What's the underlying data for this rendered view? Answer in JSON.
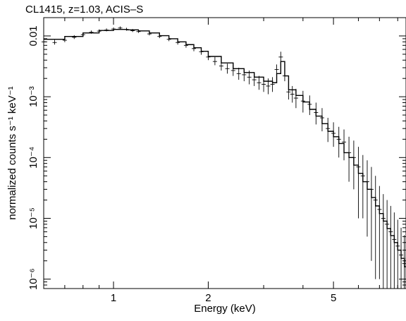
{
  "chart_data": {
    "type": "scatter",
    "title": "CL1415, z=1.03, ACIS–S",
    "xlabel": "Energy (keV)",
    "ylabel": "normalized counts s⁻¹ keV⁻¹",
    "xscale": "log",
    "yscale": "log",
    "xlim": [
      0.6,
      8.5
    ],
    "ylim": [
      7e-07,
      0.02
    ],
    "grid": false,
    "x_ticks": [
      {
        "value": 1,
        "label": "1"
      },
      {
        "value": 2,
        "label": "2"
      },
      {
        "value": 5,
        "label": "5"
      }
    ],
    "y_ticks": [
      {
        "value": 0.01,
        "label": "0.01"
      },
      {
        "value": 0.001,
        "label": "10⁻³"
      },
      {
        "value": 0.0001,
        "label": "10⁻⁴"
      },
      {
        "value": 1e-05,
        "label": "10⁻⁵"
      },
      {
        "value": 1e-06,
        "label": "10⁻⁶"
      }
    ],
    "series": [
      {
        "style": "crosses-with-error-bars",
        "color": "#000000",
        "x": [
          0.6,
          0.65,
          0.7,
          0.75,
          0.8,
          0.85,
          0.9,
          0.95,
          1.0,
          1.05,
          1.1,
          1.15,
          1.2,
          1.3,
          1.4,
          1.5,
          1.6,
          1.7,
          1.8,
          1.9,
          2.0,
          2.1,
          2.2,
          2.3,
          2.4,
          2.5,
          2.6,
          2.7,
          2.8,
          2.9,
          3.0,
          3.1,
          3.2,
          3.3,
          3.4,
          3.5,
          3.6,
          3.7,
          3.8,
          4.0,
          4.2,
          4.4,
          4.6,
          4.8,
          5.0,
          5.2,
          5.4,
          5.6,
          5.8,
          6.0,
          6.2,
          6.4,
          6.6,
          6.8,
          7.0,
          7.2,
          7.4,
          7.6,
          7.8,
          8.0,
          8.2,
          8.4
        ],
        "y": [
          0.008,
          0.0078,
          0.0085,
          0.0095,
          0.0105,
          0.0115,
          0.012,
          0.0125,
          0.013,
          0.0135,
          0.0128,
          0.0122,
          0.0118,
          0.0108,
          0.0098,
          0.0088,
          0.0078,
          0.007,
          0.0062,
          0.0055,
          0.0045,
          0.0038,
          0.0032,
          0.0029,
          0.0027,
          0.0024,
          0.0023,
          0.0021,
          0.0019,
          0.0017,
          0.0016,
          0.0015,
          0.0016,
          0.0028,
          0.0045,
          0.0022,
          0.0012,
          0.0011,
          0.00095,
          0.00085,
          0.00075,
          0.00055,
          0.00045,
          0.0003,
          0.00025,
          0.0002,
          0.00018,
          0.00012,
          0.0001,
          7e-05,
          5e-05,
          4e-05,
          3e-05,
          2e-05,
          1.4e-05,
          1e-05,
          8e-06,
          6e-06,
          4.5e-06,
          3.5e-06,
          2.5e-06,
          1.8e-06
        ],
        "err_lo": [
          0.0006,
          0.0006,
          0.0006,
          0.0006,
          0.0006,
          0.0006,
          0.0006,
          0.0006,
          0.0006,
          0.0006,
          0.0006,
          0.0006,
          0.0006,
          0.0006,
          0.0006,
          0.0006,
          0.0006,
          0.0006,
          0.0006,
          0.0006,
          0.0005,
          0.0005,
          0.0005,
          0.0005,
          0.0005,
          0.0005,
          0.0005,
          0.0005,
          0.0004,
          0.0004,
          0.0004,
          0.0004,
          0.0004,
          0.0004,
          0.0008,
          0.0004,
          0.0003,
          0.0003,
          0.0003,
          0.0003,
          0.00025,
          0.0002,
          0.00018,
          0.00012,
          0.0001,
          0.0001,
          9e-05,
          8e-05,
          7e-05,
          6e-05,
          4e-05,
          3.5e-05,
          2.8e-05,
          1.9e-05,
          1.3e-05,
          9.5e-06,
          7.5e-06,
          5.7e-06,
          4.3e-06,
          3.3e-06,
          2.4e-06,
          1.7e-06
        ],
        "err_hi": [
          0.0008,
          0.0008,
          0.0008,
          0.0008,
          0.0008,
          0.0008,
          0.0008,
          0.0008,
          0.0008,
          0.0008,
          0.0008,
          0.0008,
          0.0008,
          0.0008,
          0.0008,
          0.0008,
          0.0008,
          0.0008,
          0.0008,
          0.0008,
          0.0007,
          0.0007,
          0.0006,
          0.0006,
          0.0006,
          0.0006,
          0.0006,
          0.0006,
          0.0005,
          0.0005,
          0.0005,
          0.0005,
          0.0005,
          0.0006,
          0.001,
          0.0006,
          0.0004,
          0.0004,
          0.0004,
          0.0004,
          0.0003,
          0.00025,
          0.0002,
          0.00015,
          0.00013,
          0.00012,
          0.00011,
          0.0001,
          9e-05,
          8e-05,
          6e-05,
          5e-05,
          4e-05,
          3e-05,
          2e-05,
          1.5e-05,
          1.2e-05,
          1e-05,
          8e-06,
          6e-06,
          4.5e-06,
          3.5e-06
        ]
      },
      {
        "style": "histogram-step-model",
        "color": "#000000",
        "x": [
          0.6,
          0.7,
          0.8,
          0.9,
          1.0,
          1.1,
          1.2,
          1.3,
          1.4,
          1.5,
          1.6,
          1.7,
          1.8,
          1.9,
          2.0,
          2.2,
          2.4,
          2.6,
          2.8,
          3.0,
          3.2,
          3.3,
          3.4,
          3.5,
          3.6,
          3.8,
          4.0,
          4.2,
          4.4,
          4.6,
          4.8,
          5.0,
          5.2,
          5.4,
          5.6,
          5.8,
          6.0,
          6.2,
          6.4,
          6.6,
          6.8,
          7.0,
          7.2,
          7.4,
          7.6,
          7.8,
          8.0,
          8.2,
          8.4,
          8.5
        ],
        "y": [
          0.0088,
          0.0098,
          0.0112,
          0.0123,
          0.0128,
          0.0126,
          0.0121,
          0.0112,
          0.0101,
          0.009,
          0.008,
          0.0072,
          0.0064,
          0.0056,
          0.0046,
          0.0036,
          0.0029,
          0.0025,
          0.0021,
          0.0018,
          0.0017,
          0.0024,
          0.0038,
          0.0022,
          0.0013,
          0.00105,
          0.00082,
          0.00062,
          0.00048,
          0.00036,
          0.00027,
          0.00022,
          0.00017,
          0.00012,
          0.0001,
          7.5e-05,
          5.5e-05,
          4e-05,
          3e-05,
          2.2e-05,
          1.6e-05,
          1.2e-05,
          9e-06,
          6.8e-06,
          5.2e-06,
          4e-06,
          3e-06,
          2.2e-06,
          1.6e-06,
          1.2e-06
        ]
      }
    ]
  }
}
